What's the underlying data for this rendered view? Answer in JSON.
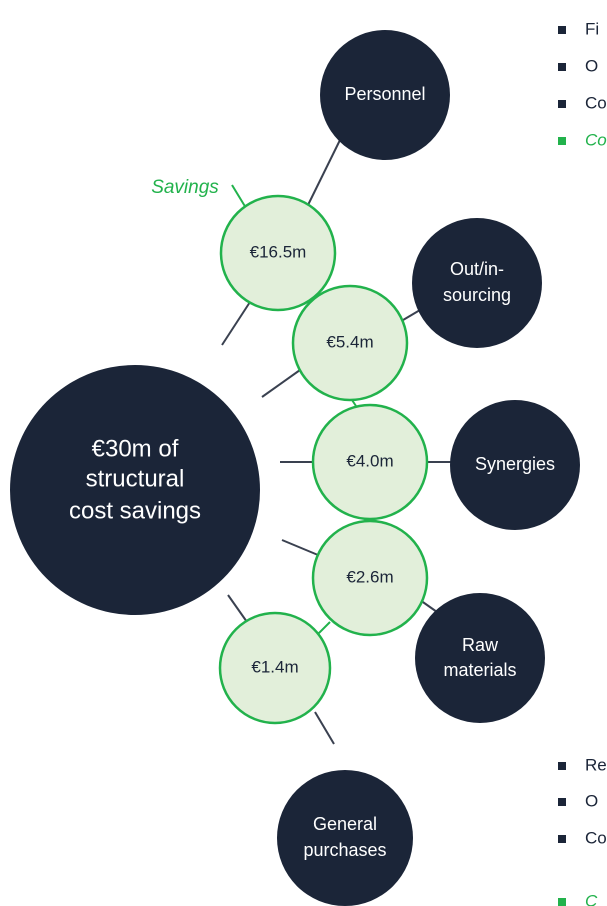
{
  "center": {
    "lines": [
      "€30m of",
      "structural",
      "cost savings"
    ]
  },
  "savings_label": "Savings",
  "nodes": [
    {
      "lines": [
        "Personnel"
      ],
      "saving": "€16.5m"
    },
    {
      "lines": [
        "Out/in-",
        "sourcing"
      ],
      "saving": "€5.4m"
    },
    {
      "lines": [
        "Synergies"
      ],
      "saving": "€4.0m"
    },
    {
      "lines": [
        "Raw",
        "materials"
      ],
      "saving": "€2.6m"
    },
    {
      "lines": [
        "General",
        "purchases"
      ],
      "saving": "€1.4m"
    }
  ],
  "bullets_top": [
    "Fi",
    "O",
    "Co",
    "Co"
  ],
  "bullets_bottom": [
    "Re",
    "O",
    "Co",
    "C"
  ]
}
